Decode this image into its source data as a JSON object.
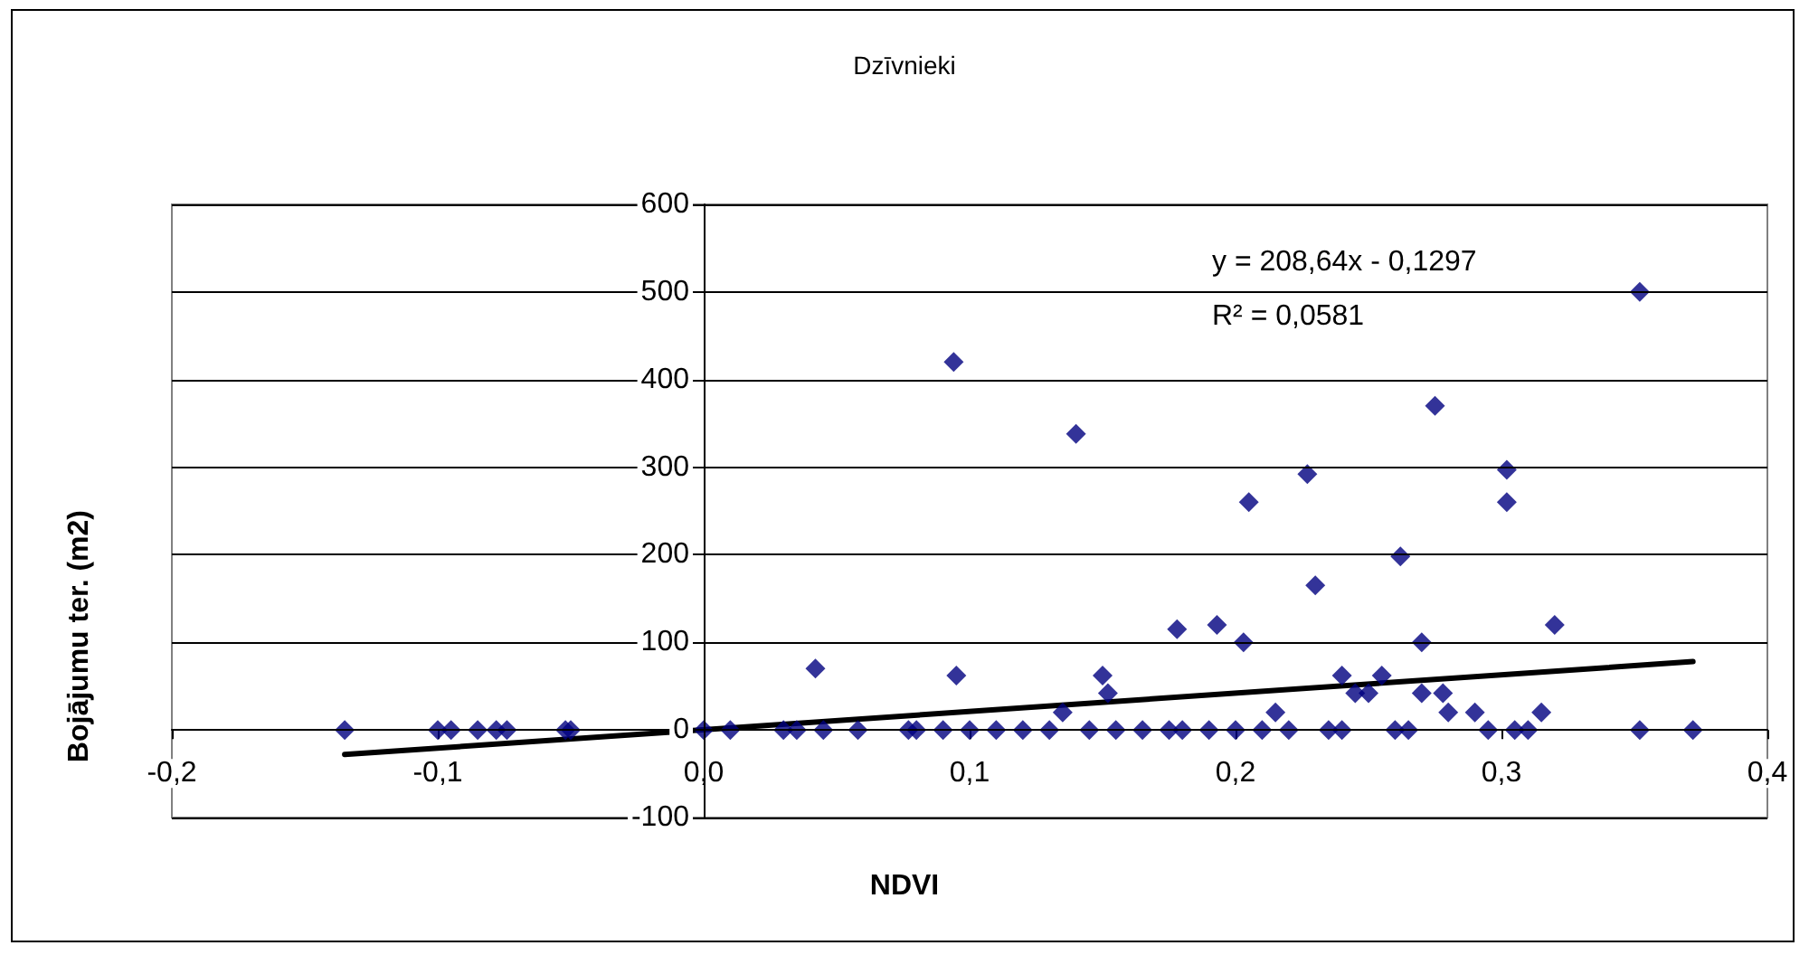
{
  "chart_data": {
    "type": "scatter",
    "title": "Dzīvnieki",
    "xlabel": "NDVI",
    "ylabel": "Bojājumu ter. (m2)",
    "xlim": [
      -0.2,
      0.4
    ],
    "xticks": [
      {
        "value": -0.2,
        "label": "-0,2"
      },
      {
        "value": -0.1,
        "label": "-0,1"
      },
      {
        "value": 0,
        "label": "0,0"
      },
      {
        "value": 0.1,
        "label": "0,1"
      },
      {
        "value": 0.2,
        "label": "0,2"
      },
      {
        "value": 0.3,
        "label": "0,3"
      },
      {
        "value": 0.4,
        "label": "0,4"
      }
    ],
    "ylim": [
      -100,
      600
    ],
    "yticks": [
      -100,
      0,
      100,
      200,
      300,
      400,
      500,
      600
    ],
    "grid": "y",
    "annotations": [
      "y = 208,64x - 0,1297",
      "R² = 0,0581"
    ],
    "series": [
      {
        "marker": "diamond",
        "color": "#000080",
        "x": [
          0.094,
          0.14,
          0.227,
          0.275,
          0.205,
          0.302,
          0.302,
          0.23,
          0.262,
          0.352,
          0.178,
          0.193,
          0.203,
          0.32,
          0.27,
          0.042,
          0.095,
          0.15,
          0.152,
          0.24,
          0.255,
          0.245,
          0.25,
          0.27,
          0.278,
          0.28,
          0.29,
          0.315,
          0.215,
          0.135,
          -0.135,
          -0.1,
          -0.095,
          -0.085,
          -0.078,
          -0.074,
          -0.052,
          -0.05,
          0,
          0.01,
          0.03,
          0.035,
          0.045,
          0.058,
          0.077,
          0.08,
          0.09,
          0.1,
          0.11,
          0.12,
          0.13,
          0.145,
          0.155,
          0.165,
          0.175,
          0.18,
          0.19,
          0.2,
          0.21,
          0.22,
          0.235,
          0.24,
          0.26,
          0.265,
          0.295,
          0.305,
          0.31,
          0.352,
          0.372
        ],
        "values": [
          420,
          338,
          292,
          370,
          260,
          297,
          260,
          165,
          198,
          500,
          115,
          120,
          100,
          120,
          100,
          70,
          62,
          62,
          42,
          62,
          62,
          42,
          42,
          42,
          42,
          20,
          20,
          20,
          20,
          20,
          0,
          0,
          0,
          0,
          0,
          0,
          0,
          0,
          0,
          0,
          0,
          0,
          0,
          0,
          0,
          0,
          0,
          0,
          0,
          0,
          0,
          0,
          0,
          0,
          0,
          0,
          0,
          0,
          0,
          0,
          0,
          0,
          0,
          0,
          0,
          0,
          0,
          0,
          0
        ]
      },
      {
        "type": "line",
        "color": "#000000",
        "x": [
          -0.135,
          0.372
        ],
        "values": [
          -28,
          78
        ]
      }
    ]
  }
}
